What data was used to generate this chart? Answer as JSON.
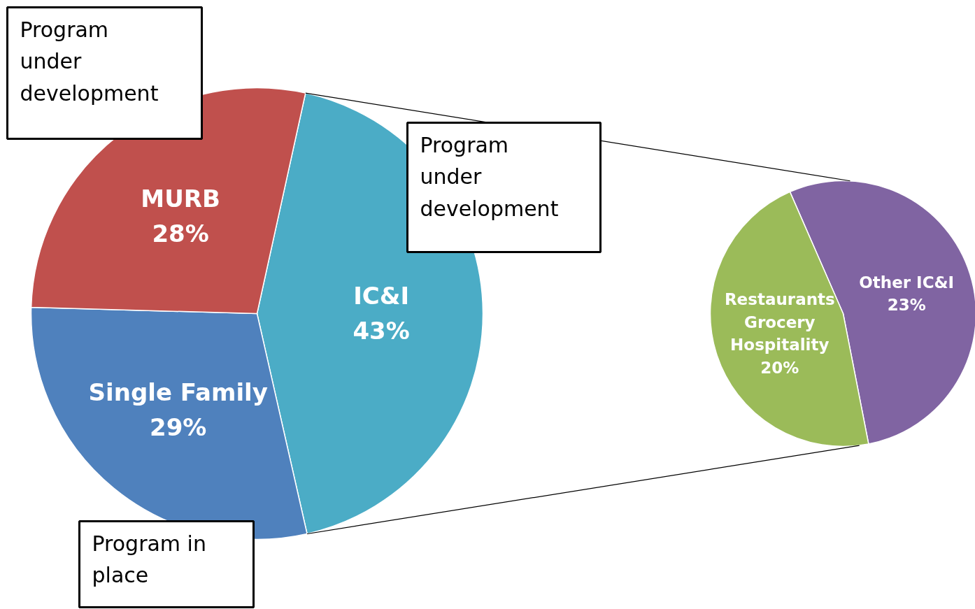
{
  "chart_data": [
    {
      "type": "pie",
      "categories": [
        "IC&I",
        "Single Family",
        "MURB"
      ],
      "values": [
        43,
        29,
        28
      ],
      "colors": [
        "#4bacc6",
        "#4f81bd",
        "#c0504d"
      ],
      "value_labels": [
        "43%",
        "29%",
        "28%"
      ],
      "annotations": [
        "Program under development",
        "Program under development",
        "Program in place"
      ]
    },
    {
      "type": "pie",
      "categories": [
        "Other IC&I",
        "Restaurants\nGrocery\nHospitality"
      ],
      "values": [
        23,
        20
      ],
      "colors": [
        "#8064a2",
        "#9bbb59"
      ],
      "value_labels": [
        "23%",
        "20%"
      ]
    }
  ]
}
